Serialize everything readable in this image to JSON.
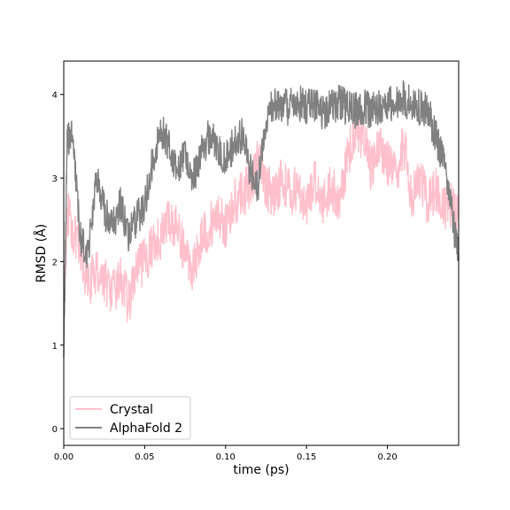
{
  "chart_data": {
    "type": "line",
    "xlabel": "time (ps)",
    "ylabel": "RMSD (Å)",
    "xlim": [
      0.0,
      0.244
    ],
    "ylim": [
      -0.2,
      4.4
    ],
    "xticks": [
      0.0,
      0.05,
      0.1,
      0.15,
      0.2
    ],
    "xtick_labels": [
      "0.00",
      "0.05",
      "0.10",
      "0.15",
      "0.20"
    ],
    "yticks": [
      0,
      1,
      2,
      3,
      4
    ],
    "ytick_labels": [
      "0",
      "1",
      "2",
      "3",
      "4"
    ],
    "grid": false,
    "legend": {
      "position": "lower-left"
    },
    "series": [
      {
        "name": "Crystal",
        "color": "#ffc0cb",
        "x": [
          0.0,
          0.002,
          0.005,
          0.01,
          0.015,
          0.02,
          0.025,
          0.03,
          0.035,
          0.04,
          0.045,
          0.05,
          0.055,
          0.06,
          0.065,
          0.07,
          0.075,
          0.08,
          0.085,
          0.09,
          0.095,
          0.1,
          0.105,
          0.11,
          0.115,
          0.12,
          0.125,
          0.13,
          0.135,
          0.14,
          0.145,
          0.15,
          0.155,
          0.16,
          0.165,
          0.17,
          0.175,
          0.18,
          0.185,
          0.19,
          0.195,
          0.2,
          0.205,
          0.21,
          0.215,
          0.22,
          0.225,
          0.23,
          0.235,
          0.24,
          0.244
        ],
        "y": [
          1.2,
          2.6,
          2.4,
          2.1,
          1.7,
          1.9,
          1.8,
          1.6,
          1.8,
          1.5,
          1.9,
          2.0,
          2.2,
          2.3,
          2.5,
          2.4,
          2.1,
          1.9,
          2.3,
          2.4,
          2.6,
          2.4,
          2.7,
          2.8,
          2.9,
          3.2,
          2.9,
          2.8,
          3.0,
          2.8,
          2.9,
          2.6,
          3.0,
          2.7,
          2.9,
          2.7,
          3.2,
          3.6,
          3.5,
          3.1,
          3.4,
          3.2,
          3.0,
          3.4,
          2.8,
          3.0,
          2.7,
          2.9,
          2.6,
          2.7,
          2.5
        ]
      },
      {
        "name": "AlphaFold 2",
        "color": "#808080",
        "x": [
          0.0,
          0.002,
          0.005,
          0.01,
          0.015,
          0.02,
          0.025,
          0.03,
          0.035,
          0.04,
          0.045,
          0.05,
          0.055,
          0.06,
          0.065,
          0.07,
          0.075,
          0.08,
          0.085,
          0.09,
          0.095,
          0.1,
          0.105,
          0.11,
          0.115,
          0.12,
          0.125,
          0.13,
          0.135,
          0.14,
          0.145,
          0.15,
          0.155,
          0.16,
          0.165,
          0.17,
          0.175,
          0.18,
          0.185,
          0.19,
          0.195,
          0.2,
          0.205,
          0.21,
          0.215,
          0.22,
          0.225,
          0.23,
          0.235,
          0.24,
          0.244
        ],
        "y": [
          0.9,
          3.4,
          3.6,
          2.3,
          2.1,
          3.0,
          2.6,
          2.4,
          2.7,
          2.3,
          2.5,
          2.7,
          3.2,
          3.6,
          3.4,
          3.1,
          3.3,
          3.0,
          3.3,
          3.5,
          3.4,
          3.2,
          3.4,
          3.5,
          3.1,
          2.9,
          3.7,
          3.9,
          3.85,
          3.85,
          3.9,
          3.85,
          3.9,
          3.8,
          3.85,
          3.9,
          3.85,
          3.8,
          3.85,
          3.8,
          3.85,
          3.9,
          3.85,
          3.95,
          3.9,
          3.85,
          3.8,
          3.5,
          3.2,
          2.6,
          2.0
        ]
      }
    ]
  }
}
